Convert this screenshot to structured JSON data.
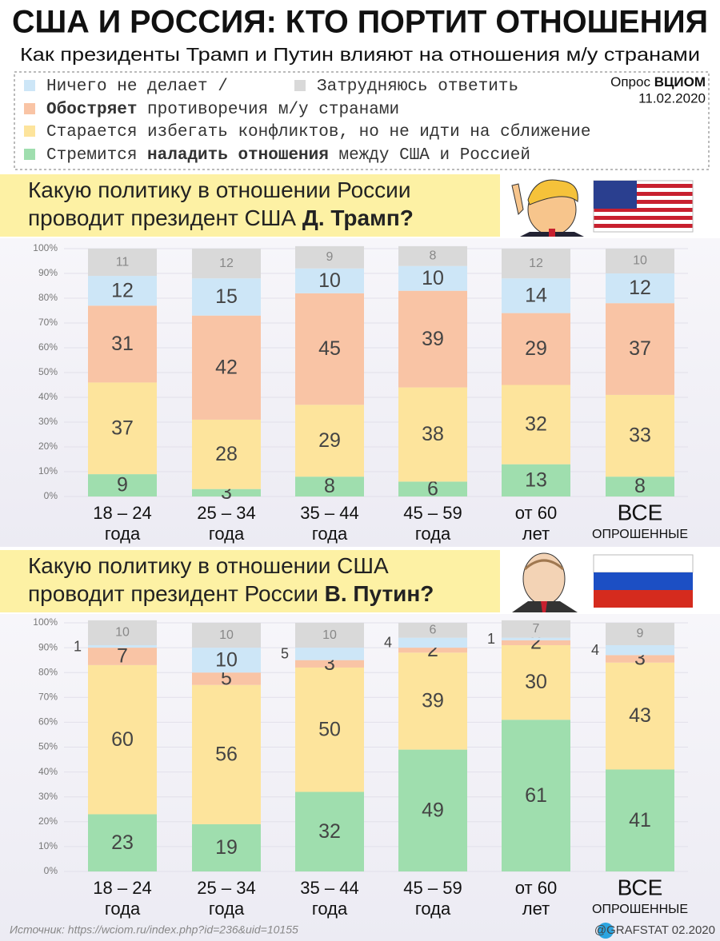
{
  "title": "США И РОССИЯ: КТО ПОРТИТ ОТНОШЕНИЯ",
  "subtitle": "Как президенты Трамп и Путин влияют на отношения м/у странами",
  "legend": [
    [
      {
        "color": "#cde6f7",
        "parts": [
          {
            "text": "Ничего не делает /"
          }
        ]
      },
      {
        "color": "#d9d9d9",
        "parts": [
          {
            "text": "Затрудняюсь ответить"
          }
        ]
      }
    ],
    [
      {
        "color": "#f9c4a5",
        "parts": [
          {
            "text": "Обостряет",
            "bold": true
          },
          {
            "text": " противоречия м/у странами"
          }
        ]
      }
    ],
    [
      {
        "color": "#fde49c",
        "parts": [
          {
            "text": "Старается избегать конфликтов, но не идти на сближение"
          }
        ]
      }
    ],
    [
      {
        "color": "#9fdeae",
        "parts": [
          {
            "text": "Стремится "
          },
          {
            "text": "наладить отношения",
            "bold": true
          },
          {
            "text": " между США и Россией"
          }
        ]
      }
    ]
  ],
  "poll": {
    "parts": [
      {
        "text": "Опрос "
      },
      {
        "text": "ВЦИОМ",
        "bold": true
      }
    ],
    "date": "11.02.2020"
  },
  "chart_data": [
    {
      "type": "bar",
      "stacked": true,
      "question": [
        [
          {
            "text": "Какую политику в отношении России"
          }
        ],
        [
          {
            "text": "проводит президент США "
          },
          {
            "text": "Д. Трамп?",
            "bold": true
          }
        ]
      ],
      "categories": [
        [
          "18 – 24",
          "года"
        ],
        [
          "25 – 34",
          "года"
        ],
        [
          "35 – 44",
          "года"
        ],
        [
          "45 – 59",
          "года"
        ],
        [
          "от 60",
          "лет"
        ],
        [
          "ВСЕ",
          "ОПРОШЕННЫЕ"
        ]
      ],
      "series": [
        {
          "color": "#9fdeae",
          "values": [
            9,
            3,
            8,
            6,
            13,
            8
          ]
        },
        {
          "color": "#fde49c",
          "values": [
            37,
            28,
            29,
            38,
            32,
            33
          ]
        },
        {
          "color": "#f9c4a5",
          "values": [
            31,
            42,
            45,
            39,
            29,
            37
          ]
        },
        {
          "color": "#cde6f7",
          "values": [
            12,
            15,
            10,
            10,
            14,
            12
          ]
        },
        {
          "color": "#d9d9d9",
          "values": [
            11,
            12,
            9,
            8,
            12,
            10
          ]
        }
      ],
      "ylim": [
        0,
        100
      ],
      "yticks": [
        {
          "value": 0,
          "label": "0%"
        },
        {
          "value": 10,
          "label": "10%"
        },
        {
          "value": 20,
          "label": "20%"
        },
        {
          "value": 30,
          "label": "30%"
        },
        {
          "value": 40,
          "label": "40%"
        },
        {
          "value": 50,
          "label": "50%"
        },
        {
          "value": 60,
          "label": "60%"
        },
        {
          "value": 70,
          "label": "70%"
        },
        {
          "value": 80,
          "label": "80%"
        },
        {
          "value": 90,
          "label": "90%"
        },
        {
          "value": 100,
          "label": "100%"
        }
      ],
      "grid": true
    },
    {
      "type": "bar",
      "stacked": true,
      "question": [
        [
          {
            "text": "Какую политику в отношении США"
          }
        ],
        [
          {
            "text": "проводит президент России "
          },
          {
            "text": "В. Путин?",
            "bold": true
          }
        ]
      ],
      "categories": [
        [
          "18 – 24",
          "года"
        ],
        [
          "25 – 34",
          "года"
        ],
        [
          "35 – 44",
          "года"
        ],
        [
          "45 – 59",
          "года"
        ],
        [
          "от 60",
          "лет"
        ],
        [
          "ВСЕ",
          "ОПРОШЕННЫЕ"
        ]
      ],
      "series": [
        {
          "color": "#9fdeae",
          "values": [
            23,
            19,
            32,
            49,
            61,
            41
          ]
        },
        {
          "color": "#fde49c",
          "values": [
            60,
            56,
            50,
            39,
            30,
            43
          ]
        },
        {
          "color": "#f9c4a5",
          "values": [
            7,
            5,
            3,
            2,
            2,
            3
          ]
        },
        {
          "color": "#cde6f7",
          "values": [
            1,
            10,
            5,
            4,
            1,
            4
          ]
        },
        {
          "color": "#d9d9d9",
          "values": [
            10,
            10,
            10,
            6,
            7,
            9
          ]
        }
      ],
      "ylim": [
        0,
        100
      ],
      "yticks": [
        {
          "value": 0,
          "label": "0%"
        },
        {
          "value": 10,
          "label": "10%"
        },
        {
          "value": 20,
          "label": "20%"
        },
        {
          "value": 30,
          "label": "30%"
        },
        {
          "value": 40,
          "label": "40%"
        },
        {
          "value": 50,
          "label": "50%"
        },
        {
          "value": 60,
          "label": "60%"
        },
        {
          "value": 70,
          "label": "70%"
        },
        {
          "value": 80,
          "label": "80%"
        },
        {
          "value": 90,
          "label": "90%"
        },
        {
          "value": 100,
          "label": "100%"
        }
      ],
      "grid": true
    }
  ],
  "source": "Источник: https://wciom.ru/index.php?id=236&uid=10155",
  "credit": "@GRAFSTAT 02.2020"
}
